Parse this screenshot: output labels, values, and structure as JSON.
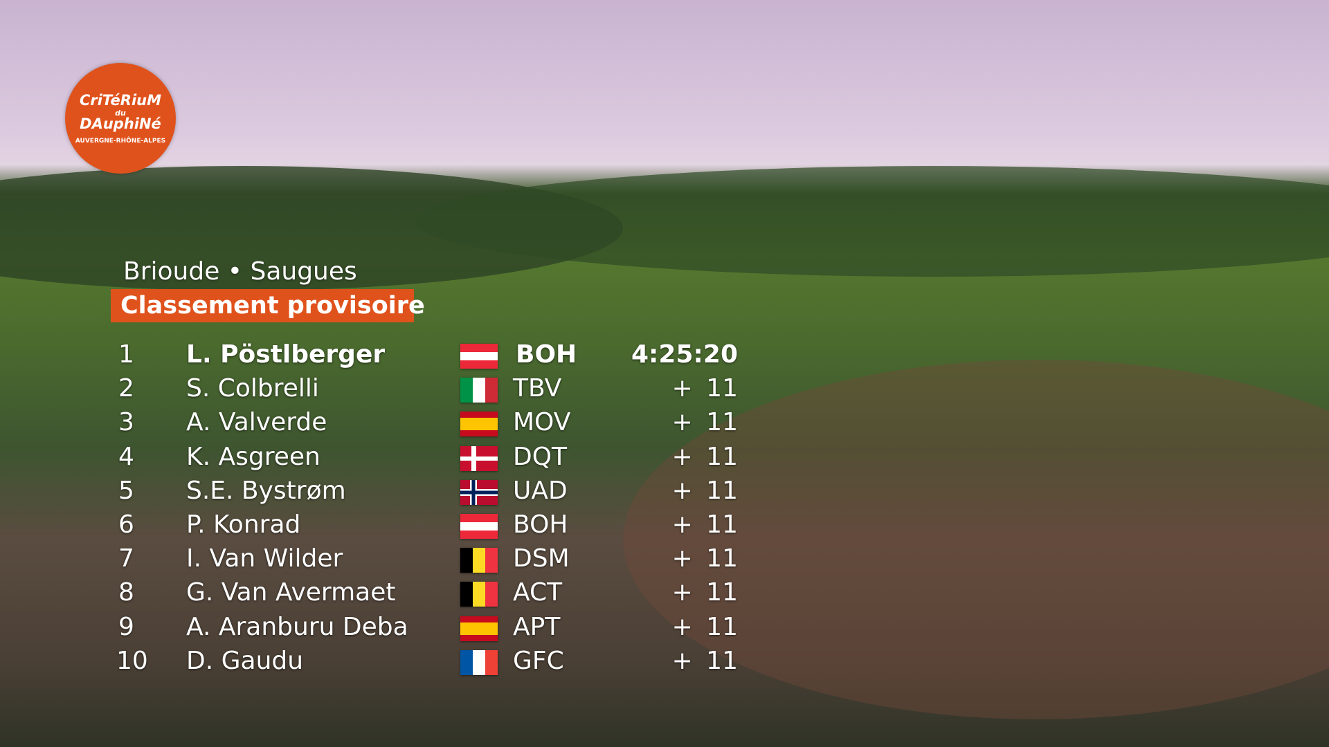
{
  "logo": {
    "line1": "CriTéRiuM",
    "line2": "du",
    "line3": "DAuphiNé",
    "line4": "AUVERGNE-RHÔNE-ALPES"
  },
  "header": {
    "stage": "Brioude • Saugues",
    "title": "Classement provisoire"
  },
  "table": {
    "rows": [
      {
        "rank": 1,
        "name": "L. Pöstlberger",
        "team": "BOH",
        "time": "4:25:20"
      },
      {
        "rank": 2,
        "name": "S. Colbrelli",
        "team": "TBV",
        "time": "+ 11"
      },
      {
        "rank": 3,
        "name": "A. Valverde",
        "team": "MOV",
        "time": "+ 11"
      },
      {
        "rank": 4,
        "name": "K. Asgreen",
        "team": "DQT",
        "time": "+ 11"
      },
      {
        "rank": 5,
        "name": "S.E. Bystrøm",
        "team": "UAD",
        "time": "+ 11"
      },
      {
        "rank": 6,
        "name": "P. Konrad",
        "team": "BOH",
        "time": "+ 11"
      },
      {
        "rank": 7,
        "name": "I. Van Wilder",
        "team": "DSM",
        "time": "+ 11"
      },
      {
        "rank": 8,
        "name": "G. Van Avermaet",
        "team": "ACT",
        "time": "+ 11"
      },
      {
        "rank": 9,
        "name": "A. Aranburu Deba",
        "team": "APT",
        "time": "+ 11"
      },
      {
        "rank": 10,
        "name": "D. Gaudu",
        "team": "GFC",
        "time": "+ 11"
      }
    ]
  }
}
